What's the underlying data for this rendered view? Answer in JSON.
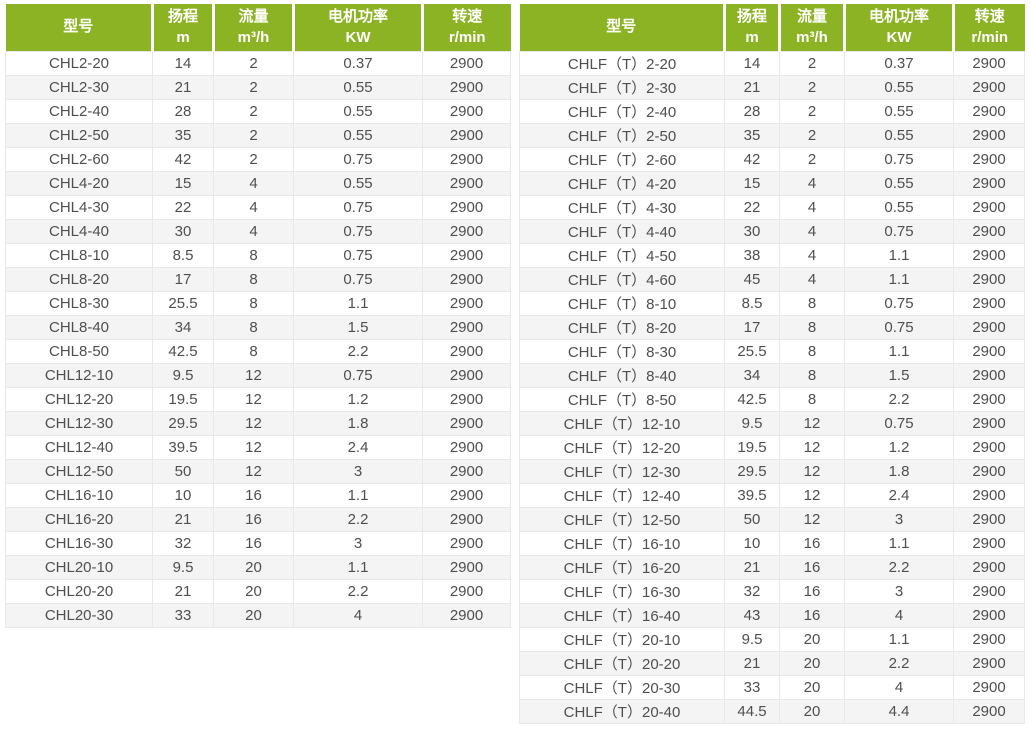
{
  "colors": {
    "header_bg": "#8cb324",
    "header_text": "#ffffff",
    "row_stripe": "#f4f4f4",
    "grid_line": "#e8e8e8",
    "cell_text": "#4f4f4f"
  },
  "headers": {
    "model": "型号",
    "head_label": "扬程",
    "head_unit": "m",
    "flow_label": "流量",
    "flow_unit": "m³/h",
    "power_label": "电机功率",
    "power_unit": "KW",
    "speed_label": "转速",
    "speed_unit": "r/min"
  },
  "left_table": {
    "rows": [
      [
        "CHL2-20",
        "14",
        "2",
        "0.37",
        "2900"
      ],
      [
        "CHL2-30",
        "21",
        "2",
        "0.55",
        "2900"
      ],
      [
        "CHL2-40",
        "28",
        "2",
        "0.55",
        "2900"
      ],
      [
        "CHL2-50",
        "35",
        "2",
        "0.55",
        "2900"
      ],
      [
        "CHL2-60",
        "42",
        "2",
        "0.75",
        "2900"
      ],
      [
        "CHL4-20",
        "15",
        "4",
        "0.55",
        "2900"
      ],
      [
        "CHL4-30",
        "22",
        "4",
        "0.75",
        "2900"
      ],
      [
        "CHL4-40",
        "30",
        "4",
        "0.75",
        "2900"
      ],
      [
        "CHL8-10",
        "8.5",
        "8",
        "0.75",
        "2900"
      ],
      [
        "CHL8-20",
        "17",
        "8",
        "0.75",
        "2900"
      ],
      [
        "CHL8-30",
        "25.5",
        "8",
        "1.1",
        "2900"
      ],
      [
        "CHL8-40",
        "34",
        "8",
        "1.5",
        "2900"
      ],
      [
        "CHL8-50",
        "42.5",
        "8",
        "2.2",
        "2900"
      ],
      [
        "CHL12-10",
        "9.5",
        "12",
        "0.75",
        "2900"
      ],
      [
        "CHL12-20",
        "19.5",
        "12",
        "1.2",
        "2900"
      ],
      [
        "CHL12-30",
        "29.5",
        "12",
        "1.8",
        "2900"
      ],
      [
        "CHL12-40",
        "39.5",
        "12",
        "2.4",
        "2900"
      ],
      [
        "CHL12-50",
        "50",
        "12",
        "3",
        "2900"
      ],
      [
        "CHL16-10",
        "10",
        "16",
        "1.1",
        "2900"
      ],
      [
        "CHL16-20",
        "21",
        "16",
        "2.2",
        "2900"
      ],
      [
        "CHL16-30",
        "32",
        "16",
        "3",
        "2900"
      ],
      [
        "CHL20-10",
        "9.5",
        "20",
        "1.1",
        "2900"
      ],
      [
        "CHL20-20",
        "21",
        "20",
        "2.2",
        "2900"
      ],
      [
        "CHL20-30",
        "33",
        "20",
        "4",
        "2900"
      ]
    ]
  },
  "right_table": {
    "rows": [
      [
        "CHLF（T）2-20",
        "14",
        "2",
        "0.37",
        "2900"
      ],
      [
        "CHLF（T）2-30",
        "21",
        "2",
        "0.55",
        "2900"
      ],
      [
        "CHLF（T）2-40",
        "28",
        "2",
        "0.55",
        "2900"
      ],
      [
        "CHLF（T）2-50",
        "35",
        "2",
        "0.55",
        "2900"
      ],
      [
        "CHLF（T）2-60",
        "42",
        "2",
        "0.75",
        "2900"
      ],
      [
        "CHLF（T）4-20",
        "15",
        "4",
        "0.55",
        "2900"
      ],
      [
        "CHLF（T）4-30",
        "22",
        "4",
        "0.55",
        "2900"
      ],
      [
        "CHLF（T）4-40",
        "30",
        "4",
        "0.75",
        "2900"
      ],
      [
        "CHLF（T）4-50",
        "38",
        "4",
        "1.1",
        "2900"
      ],
      [
        "CHLF（T）4-60",
        "45",
        "4",
        "1.1",
        "2900"
      ],
      [
        "CHLF（T）8-10",
        "8.5",
        "8",
        "0.75",
        "2900"
      ],
      [
        "CHLF（T）8-20",
        "17",
        "8",
        "0.75",
        "2900"
      ],
      [
        "CHLF（T）8-30",
        "25.5",
        "8",
        "1.1",
        "2900"
      ],
      [
        "CHLF（T）8-40",
        "34",
        "8",
        "1.5",
        "2900"
      ],
      [
        "CHLF（T）8-50",
        "42.5",
        "8",
        "2.2",
        "2900"
      ],
      [
        "CHLF（T）12-10",
        "9.5",
        "12",
        "0.75",
        "2900"
      ],
      [
        "CHLF（T）12-20",
        "19.5",
        "12",
        "1.2",
        "2900"
      ],
      [
        "CHLF（T）12-30",
        "29.5",
        "12",
        "1.8",
        "2900"
      ],
      [
        "CHLF（T）12-40",
        "39.5",
        "12",
        "2.4",
        "2900"
      ],
      [
        "CHLF（T）12-50",
        "50",
        "12",
        "3",
        "2900"
      ],
      [
        "CHLF（T）16-10",
        "10",
        "16",
        "1.1",
        "2900"
      ],
      [
        "CHLF（T）16-20",
        "21",
        "16",
        "2.2",
        "2900"
      ],
      [
        "CHLF（T）16-30",
        "32",
        "16",
        "3",
        "2900"
      ],
      [
        "CHLF（T）16-40",
        "43",
        "16",
        "4",
        "2900"
      ],
      [
        "CHLF（T）20-10",
        "9.5",
        "20",
        "1.1",
        "2900"
      ],
      [
        "CHLF（T）20-20",
        "21",
        "20",
        "2.2",
        "2900"
      ],
      [
        "CHLF（T）20-30",
        "33",
        "20",
        "4",
        "2900"
      ],
      [
        "CHLF（T）20-40",
        "44.5",
        "20",
        "4.4",
        "2900"
      ]
    ]
  }
}
